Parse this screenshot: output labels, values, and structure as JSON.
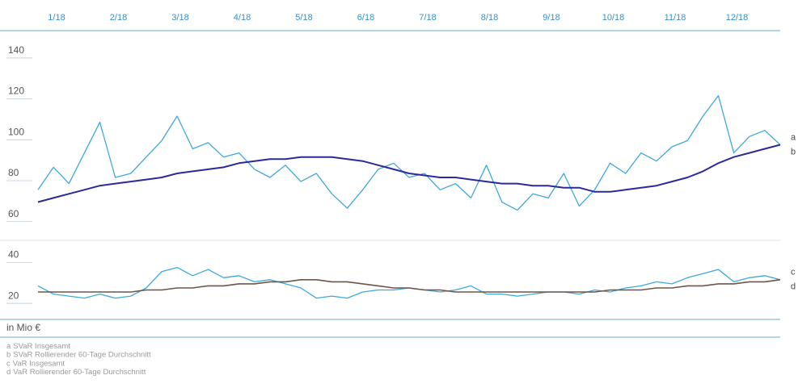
{
  "chart_data": {
    "type": "line",
    "y_label": "in Mio €",
    "x": [
      1,
      1.25,
      1.5,
      1.75,
      2,
      2.25,
      2.5,
      2.75,
      3,
      3.25,
      3.5,
      3.75,
      4,
      4.25,
      4.5,
      4.75,
      5,
      5.25,
      5.5,
      5.75,
      6,
      6.25,
      6.5,
      6.75,
      7,
      7.25,
      7.5,
      7.75,
      8,
      8.25,
      8.5,
      8.75,
      9,
      9.25,
      9.5,
      9.75,
      10,
      10.25,
      10.5,
      10.75,
      11,
      11.25,
      11.5,
      11.75,
      12,
      12.25,
      12.5,
      12.75,
      13
    ],
    "xlim": [
      1,
      13
    ],
    "xticks": [
      {
        "value": 1,
        "label": "1/18"
      },
      {
        "value": 2,
        "label": "2/18"
      },
      {
        "value": 3,
        "label": "3/18"
      },
      {
        "value": 4,
        "label": "4/18"
      },
      {
        "value": 5,
        "label": "5/18"
      },
      {
        "value": 6,
        "label": "6/18"
      },
      {
        "value": 7,
        "label": "7/18"
      },
      {
        "value": 8,
        "label": "8/18"
      },
      {
        "value": 9,
        "label": "9/18"
      },
      {
        "value": 10,
        "label": "10/18"
      },
      {
        "value": 11,
        "label": "11/18"
      },
      {
        "value": 12,
        "label": "12/18"
      }
    ],
    "ylim": [
      9,
      149
    ],
    "yticks": [
      20,
      40,
      60,
      80,
      100,
      120,
      140
    ],
    "series": [
      {
        "key": "a",
        "name": "SVaR Insgesamt",
        "color": "#3ea8dc",
        "width": 1.3,
        "values": [
          72,
          83,
          75,
          90,
          105,
          78,
          80,
          88,
          96,
          108,
          92,
          95,
          88,
          90,
          82,
          78,
          84,
          76,
          80,
          70,
          63,
          72,
          82,
          85,
          78,
          80,
          72,
          75,
          68,
          84,
          66,
          62,
          70,
          68,
          80,
          64,
          72,
          85,
          80,
          90,
          86,
          93,
          96,
          108,
          118,
          90,
          98,
          101,
          94
        ]
      },
      {
        "key": "b",
        "name": "SVaR Rollierender 60-Tage Durchschnitt",
        "color": "#2a2a9e",
        "width": 2,
        "values": [
          66,
          68,
          70,
          72,
          74,
          75,
          76,
          77,
          78,
          80,
          81,
          82,
          83,
          85,
          86,
          87,
          87,
          88,
          88,
          88,
          87,
          86,
          84,
          82,
          80,
          79,
          78,
          78,
          77,
          76,
          75,
          75,
          74,
          74,
          73,
          73,
          71,
          71,
          72,
          73,
          74,
          76,
          78,
          81,
          85,
          88,
          90,
          92,
          94
        ]
      },
      {
        "key": "c",
        "name": "VaR Insgesamt",
        "color": "#3ea8dc",
        "width": 1.3,
        "values": [
          25,
          21,
          20,
          19,
          21,
          19,
          20,
          24,
          32,
          34,
          30,
          33,
          29,
          30,
          27,
          28,
          26,
          24,
          19,
          20,
          19,
          22,
          23,
          23,
          24,
          23,
          22,
          23,
          25,
          21,
          21,
          20,
          21,
          22,
          22,
          21,
          23,
          22,
          24,
          25,
          27,
          26,
          29,
          31,
          33,
          27,
          29,
          30,
          28
        ]
      },
      {
        "key": "d",
        "name": "VaR Rollierender 60-Tage Durchschnitt",
        "color": "#6e5548",
        "width": 1.6,
        "values": [
          22,
          22,
          22,
          22,
          22,
          22,
          22,
          23,
          23,
          24,
          24,
          25,
          25,
          26,
          26,
          27,
          27,
          28,
          28,
          27,
          27,
          26,
          25,
          24,
          24,
          23,
          23,
          22,
          22,
          22,
          22,
          22,
          22,
          22,
          22,
          22,
          22,
          23,
          23,
          23,
          24,
          24,
          25,
          25,
          26,
          26,
          27,
          27,
          28
        ]
      }
    ]
  }
}
